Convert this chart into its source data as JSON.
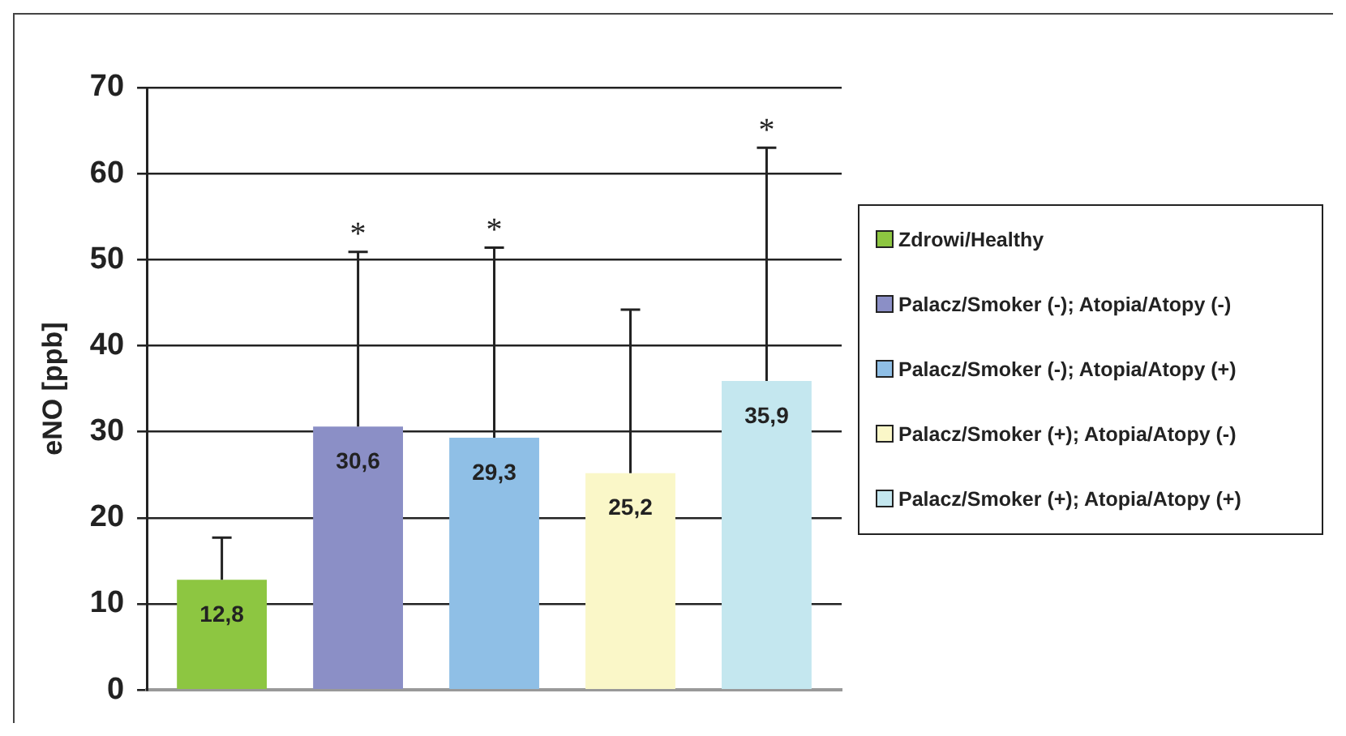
{
  "chart_data": {
    "type": "bar",
    "ylabel": "eNO [ppb]",
    "categories": [
      null
    ],
    "series": [
      {
        "name": "Zdrowi/Healthy",
        "color": "#8dc641",
        "values": [
          12.8
        ],
        "value_labels": [
          "12,8"
        ],
        "errors": [
          [
            12.8,
            17.7
          ]
        ]
      },
      {
        "name": "Palacz/Smoker (-); Atopia/Atopy (-)",
        "color": "#8b8fc6",
        "values": [
          30.6
        ],
        "value_labels": [
          "30,6"
        ],
        "errors": [
          [
            30.6,
            50.9
          ]
        ]
      },
      {
        "name": "Palacz/Smoker (-); Atopia/Atopy (+)",
        "color": "#8fbfe6",
        "values": [
          29.3
        ],
        "value_labels": [
          "29,3"
        ],
        "errors": [
          [
            29.3,
            51.4
          ]
        ]
      },
      {
        "name": "Palacz/Smoker (+); Atopia/Atopy (-)",
        "color": "#faf7c8",
        "values": [
          25.2
        ],
        "value_labels": [
          "25,2"
        ],
        "errors": [
          [
            25.2,
            44.2
          ]
        ]
      },
      {
        "name": "Palacz/Smoker (+); Atopia/Atopy (+)",
        "color": "#c4e7ef",
        "values": [
          35.9
        ],
        "value_labels": [
          "35,9"
        ],
        "errors": [
          [
            35.9,
            63.0
          ]
        ]
      }
    ],
    "annotations": [
      {
        "text": "*",
        "y": 50.9
      },
      {
        "text": "*",
        "y": 51.4
      },
      {
        "text": "*",
        "y": 63.0
      }
    ],
    "ylim": [
      0,
      70
    ],
    "yticks": [
      0,
      10,
      20,
      30,
      40,
      50,
      60,
      70
    ],
    "grid": "y",
    "legend": "right"
  }
}
